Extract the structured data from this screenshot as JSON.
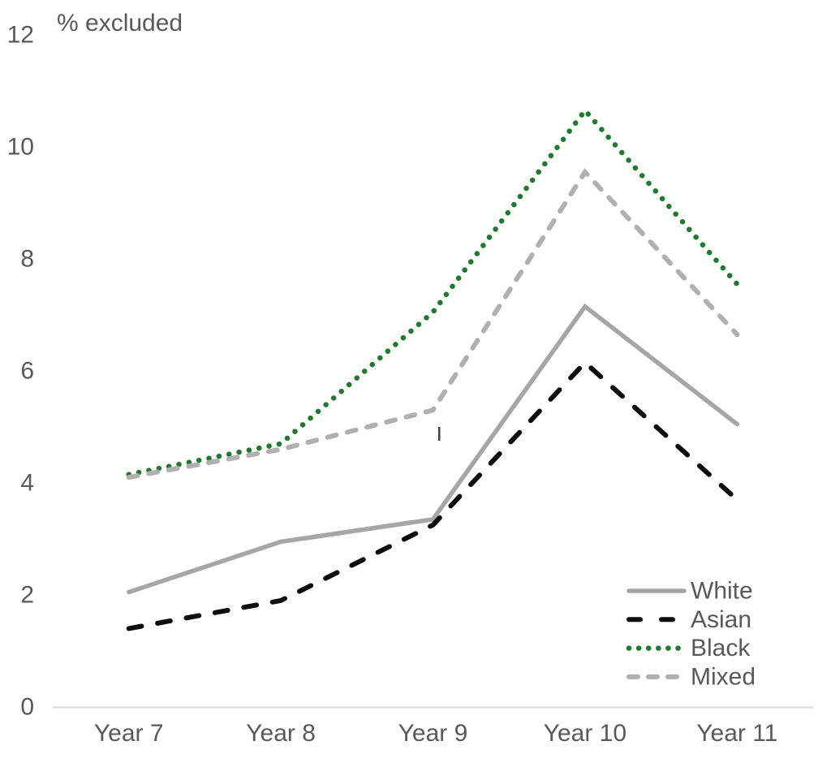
{
  "chart_data": {
    "type": "line",
    "title": "% excluded",
    "xlabel": "",
    "ylabel": "% excluded",
    "categories": [
      "Year 7",
      "Year 8",
      "Year 9",
      "Year 10",
      "Year 11"
    ],
    "series": [
      {
        "name": "White",
        "values": [
          2.05,
          2.95,
          3.35,
          7.15,
          5.05
        ],
        "color": "#a6a6a6",
        "style": "solid"
      },
      {
        "name": "Asian",
        "values": [
          1.4,
          1.9,
          3.25,
          6.15,
          3.7
        ],
        "color": "#0d0d0d",
        "style": "dashed"
      },
      {
        "name": "Black",
        "values": [
          4.15,
          4.7,
          7.05,
          10.65,
          7.55
        ],
        "color": "#1e7b2e",
        "style": "dotted"
      },
      {
        "name": "Mixed",
        "values": [
          4.1,
          4.6,
          5.3,
          9.55,
          6.65
        ],
        "color": "#b0b0b0",
        "style": "dashed-short"
      }
    ],
    "y_ticks": [
      "0",
      "2",
      "4",
      "6",
      "8",
      "10",
      "12"
    ],
    "ylim": [
      0,
      12
    ],
    "grid": false,
    "legend_position": "bottom-right",
    "legend_entries": [
      "White",
      "Asian",
      "Black",
      "Mixed"
    ],
    "axis_color": "#d9d9d9",
    "text_color": "#595959"
  }
}
